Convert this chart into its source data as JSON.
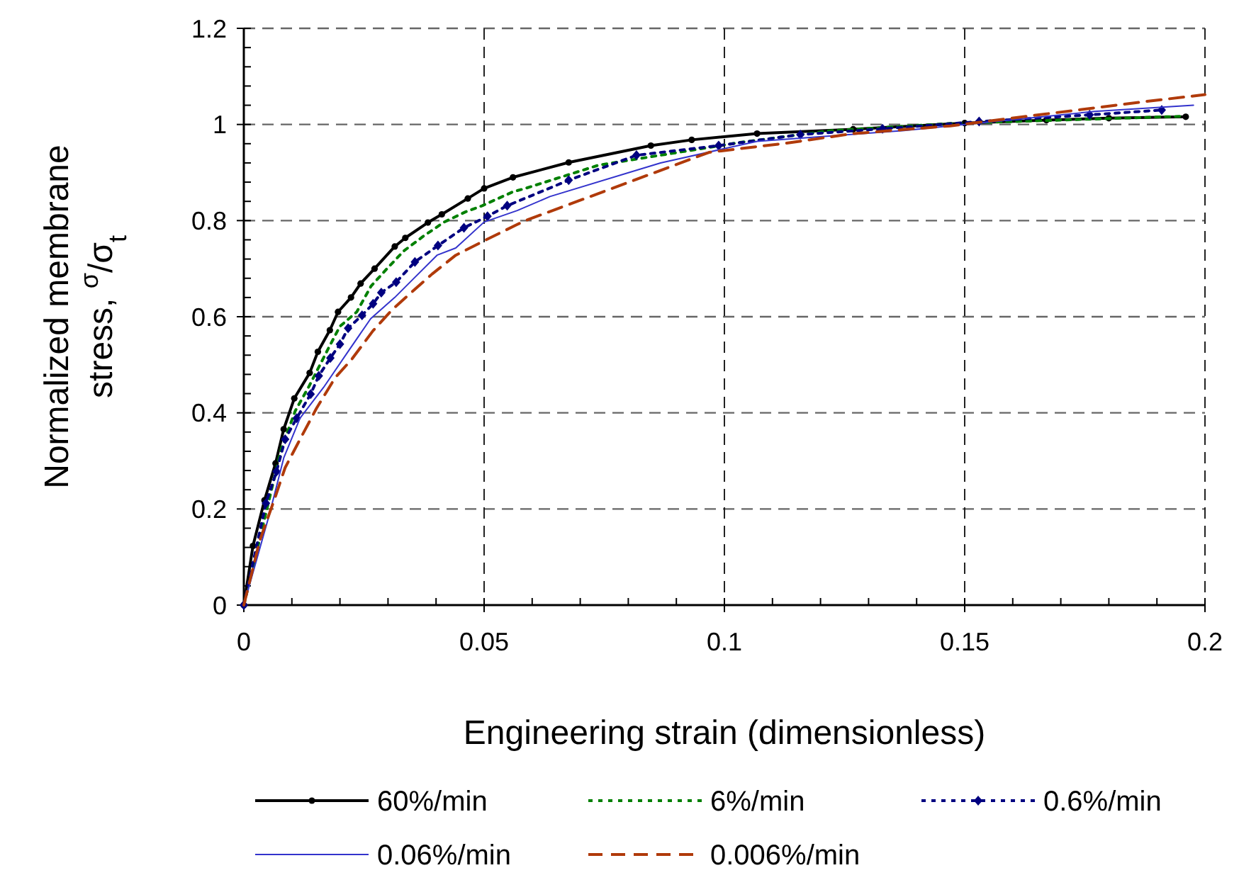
{
  "chart_data": {
    "type": "line",
    "xlabel": "Engineering strain (dimensionless)",
    "ylabel": "Normalized membrane\nstress, $^{σ}$/σ$_{t}$",
    "xlim": [
      0,
      0.2
    ],
    "ylim": [
      0,
      1.2
    ],
    "xticks": [
      0,
      0.05,
      0.1,
      0.15,
      0.2
    ],
    "yticks": [
      0,
      0.2,
      0.4,
      0.6,
      0.8,
      1,
      1.2
    ],
    "grid": true,
    "legend": "bottom",
    "series": [
      {
        "name": "60%/min",
        "color": "#000000",
        "marker": "circle",
        "line_style": "solid",
        "x": [
          0,
          0.0019,
          0.0043,
          0.0066,
          0.0083,
          0.0105,
          0.0137,
          0.0154,
          0.0179,
          0.0196,
          0.0223,
          0.0243,
          0.0272,
          0.0314,
          0.0336,
          0.0383,
          0.0412,
          0.0466,
          0.05,
          0.056,
          0.0676,
          0.0847,
          0.0932,
          0.1068,
          0.1268,
          0.15,
          0.167,
          0.18,
          0.196
        ],
        "values": [
          0,
          0.123,
          0.218,
          0.295,
          0.366,
          0.43,
          0.483,
          0.527,
          0.572,
          0.61,
          0.64,
          0.669,
          0.7,
          0.746,
          0.764,
          0.796,
          0.813,
          0.846,
          0.867,
          0.89,
          0.921,
          0.956,
          0.968,
          0.981,
          0.99,
          1.003,
          1.009,
          1.013,
          1.016
        ]
      },
      {
        "name": "6%/min",
        "color": "#008000",
        "marker": "none",
        "line_style": "dotted",
        "x": [
          0,
          0.0078,
          0.0107,
          0.0135,
          0.018,
          0.02,
          0.0235,
          0.0265,
          0.0297,
          0.0333,
          0.0373,
          0.0417,
          0.0461,
          0.0496,
          0.056,
          0.0586,
          0.0737,
          0.0867,
          0.1028,
          0.122,
          0.147,
          0.195
        ],
        "values": [
          0,
          0.325,
          0.404,
          0.454,
          0.542,
          0.58,
          0.61,
          0.664,
          0.699,
          0.737,
          0.767,
          0.797,
          0.818,
          0.831,
          0.86,
          0.867,
          0.915,
          0.936,
          0.962,
          0.987,
          1.002,
          1.017
        ]
      },
      {
        "name": "0.6%/min",
        "color": "#000080",
        "marker": "diamond",
        "line_style": "dotted",
        "x": [
          0,
          0.0046,
          0.0068,
          0.0086,
          0.011,
          0.0139,
          0.0156,
          0.018,
          0.02,
          0.0217,
          0.0246,
          0.0269,
          0.0286,
          0.0317,
          0.0356,
          0.0404,
          0.0458,
          0.0507,
          0.0548,
          0.0676,
          0.0817,
          0.0988,
          0.1158,
          0.1329,
          0.153,
          0.176,
          0.191
        ],
        "values": [
          0,
          0.212,
          0.278,
          0.345,
          0.389,
          0.439,
          0.477,
          0.514,
          0.543,
          0.576,
          0.603,
          0.627,
          0.65,
          0.672,
          0.714,
          0.748,
          0.785,
          0.809,
          0.831,
          0.884,
          0.936,
          0.956,
          0.979,
          0.991,
          1.006,
          1.02,
          1.03
        ]
      },
      {
        "name": "0.06%/min",
        "color": "#3333cc",
        "marker": "none",
        "line_style": "solid",
        "x": [
          0,
          0.0053,
          0.0083,
          0.0117,
          0.0166,
          0.022,
          0.0264,
          0.0314,
          0.0353,
          0.0402,
          0.0441,
          0.05,
          0.0569,
          0.0637,
          0.0867,
          0.1068,
          0.137,
          0.177,
          0.1976
        ],
        "values": [
          0,
          0.188,
          0.306,
          0.389,
          0.453,
          0.532,
          0.596,
          0.64,
          0.679,
          0.728,
          0.743,
          0.797,
          0.821,
          0.85,
          0.92,
          0.965,
          0.987,
          1.027,
          1.04
        ]
      },
      {
        "name": "0.006%/min",
        "color": "#b03a0a",
        "marker": "none",
        "line_style": "dashed",
        "x": [
          0,
          0.0033,
          0.0063,
          0.0086,
          0.0117,
          0.0151,
          0.019,
          0.0225,
          0.0269,
          0.0309,
          0.0348,
          0.0392,
          0.0441,
          0.05,
          0.0569,
          0.0586,
          0.0737,
          0.0968,
          0.1128,
          0.1268,
          0.147,
          0.167,
          0.187,
          0.2
        ],
        "values": [
          0,
          0.134,
          0.218,
          0.286,
          0.345,
          0.409,
          0.473,
          0.512,
          0.571,
          0.615,
          0.65,
          0.689,
          0.728,
          0.758,
          0.792,
          0.8,
          0.856,
          0.942,
          0.961,
          0.981,
          0.997,
          1.022,
          1.047,
          1.062
        ]
      }
    ]
  }
}
